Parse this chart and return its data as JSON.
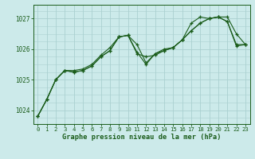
{
  "title": "Graphe pression niveau de la mer (hPa)",
  "background_color": "#cceaea",
  "grid_color": "#aad0d0",
  "line_color": "#1a5c1a",
  "marker_color": "#1a5c1a",
  "ylabel_ticks": [
    1024,
    1025,
    1026,
    1027
  ],
  "xlim": [
    -0.5,
    23.5
  ],
  "ylim": [
    1023.55,
    1027.45
  ],
  "series": [
    [
      1023.8,
      1024.35,
      1025.0,
      1025.3,
      1025.25,
      1025.3,
      1025.45,
      1025.75,
      1025.95,
      1026.4,
      1026.45,
      1025.85,
      1025.75,
      1025.8,
      1025.95,
      1026.05,
      1026.3,
      1026.85,
      1027.05,
      1027.0,
      1027.05,
      1027.05,
      1026.5,
      1026.15
    ],
    [
      1023.8,
      1024.35,
      1025.0,
      1025.3,
      1025.25,
      1025.3,
      1025.45,
      1025.75,
      1025.95,
      1026.4,
      1026.45,
      1025.9,
      1025.5,
      1025.85,
      1025.95,
      1026.05,
      1026.3,
      1026.6,
      1026.85,
      1027.0,
      1027.05,
      1026.9,
      1026.15,
      1026.15
    ],
    [
      1023.8,
      1024.35,
      1025.0,
      1025.3,
      1025.3,
      1025.35,
      1025.5,
      1025.8,
      1026.05,
      1026.4,
      1026.45,
      1026.15,
      1025.55,
      1025.85,
      1026.0,
      1026.05,
      1026.3,
      1026.6,
      1026.85,
      1027.0,
      1027.05,
      1026.9,
      1026.1,
      1026.15
    ]
  ]
}
